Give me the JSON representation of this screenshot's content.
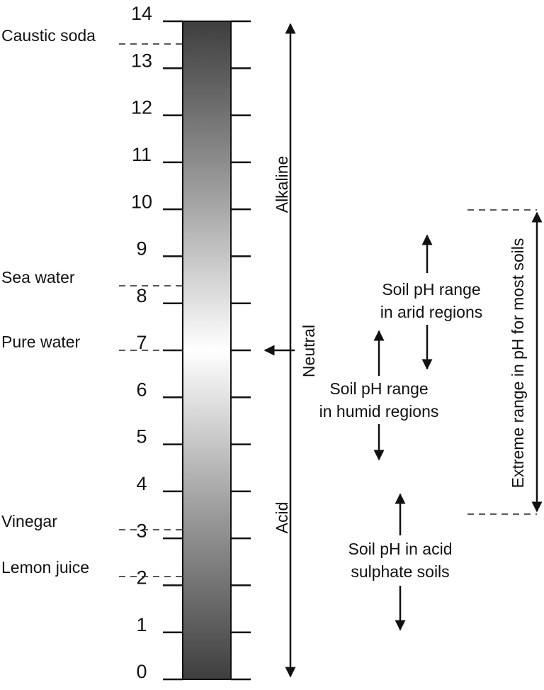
{
  "scale": {
    "ticks": [
      "0",
      "1",
      "2",
      "3",
      "4",
      "5",
      "6",
      "7",
      "8",
      "9",
      "10",
      "11",
      "12",
      "13",
      "14"
    ]
  },
  "substances": [
    {
      "label": "Caustic soda"
    },
    {
      "label": "Sea water"
    },
    {
      "label": "Pure water"
    },
    {
      "label": "Vinegar"
    },
    {
      "label": "Lemon juice"
    }
  ],
  "regions": {
    "alkaline": "Alkaline",
    "neutral": "Neutral",
    "acid": "Acid"
  },
  "soil_ranges": [
    {
      "lines": [
        "Soil pH range",
        "in arid regions"
      ]
    },
    {
      "lines": [
        "Soil pH range",
        "in humid regions"
      ]
    },
    {
      "lines": [
        "Soil pH in acid",
        "sulphate soils"
      ]
    }
  ],
  "extreme_range": "Extreme range in pH for most soils"
}
